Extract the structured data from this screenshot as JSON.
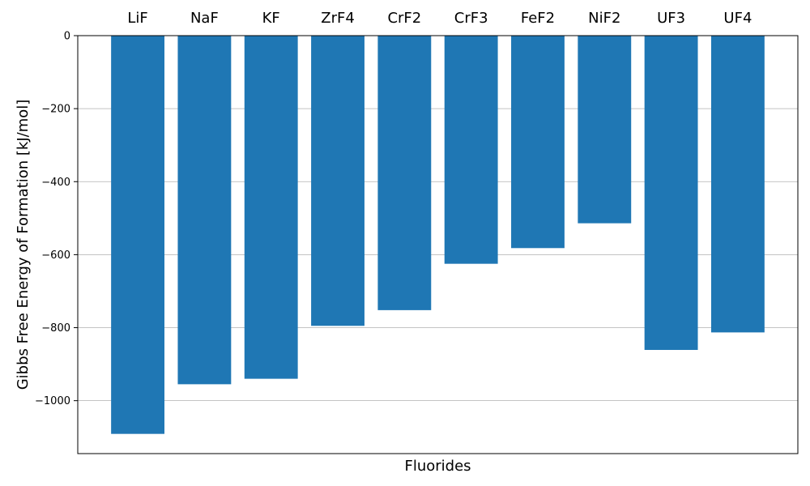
{
  "chart_data": {
    "type": "bar",
    "title": "",
    "xlabel": "Fluorides",
    "ylabel": "Gibbs Free Energy of Formation [kJ/mol]",
    "categories": [
      "LiF",
      "NaF",
      "KF",
      "ZrF4",
      "CrF2",
      "CrF3",
      "FeF2",
      "NiF2",
      "UF3",
      "UF4"
    ],
    "values": [
      -1091,
      -955,
      -940,
      -795,
      -752,
      -625,
      -582,
      -514,
      -861,
      -813
    ],
    "ylim": [
      -1145,
      0
    ],
    "yticks": [
      0,
      -200,
      -400,
      -600,
      -800,
      -1000
    ],
    "grid": "y",
    "category_labels_position": "top",
    "bar_color": "#1f77b4"
  }
}
